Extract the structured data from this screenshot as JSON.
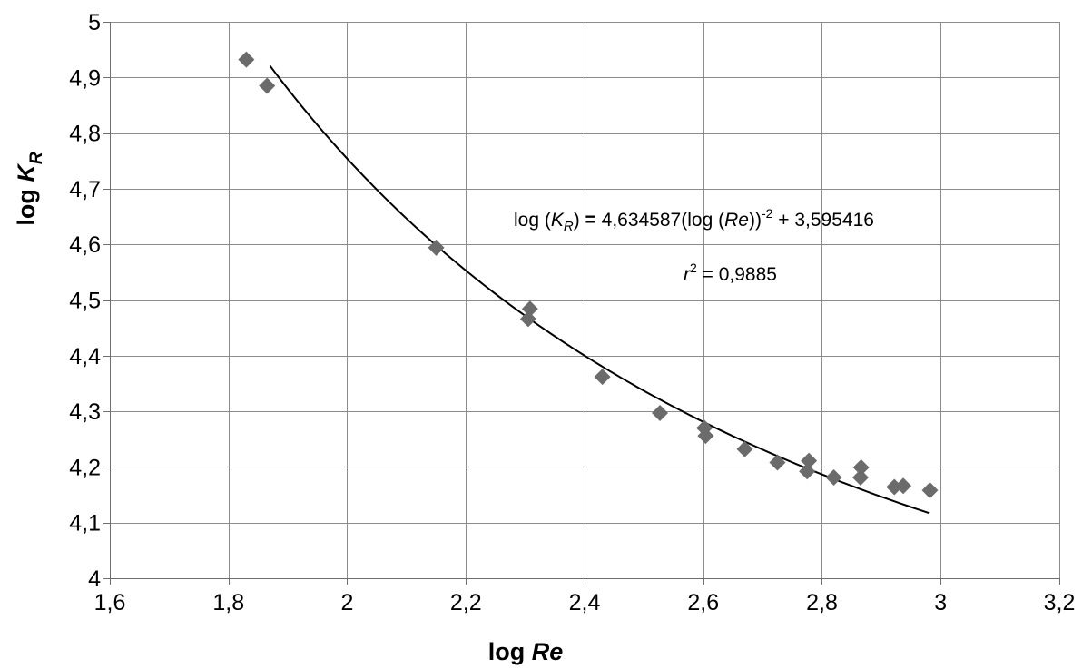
{
  "chart_data": {
    "type": "scatter",
    "xlabel": {
      "prefix": "log ",
      "var": "Re"
    },
    "ylabel": {
      "prefix": "log ",
      "var": "K",
      "sub": "R"
    },
    "xlim": [
      1.6,
      3.2
    ],
    "ylim": [
      4.0,
      5.0
    ],
    "x_ticks": [
      1.6,
      1.8,
      2.0,
      2.2,
      2.4,
      2.6,
      2.8,
      3.0,
      3.2
    ],
    "x_tick_labels": [
      "1,6",
      "1,8",
      "2",
      "2,2",
      "2,4",
      "2,6",
      "2,8",
      "3",
      "3,2"
    ],
    "y_ticks": [
      4.0,
      4.1,
      4.2,
      4.3,
      4.4,
      4.5,
      4.6,
      4.7,
      4.8,
      4.9,
      5.0
    ],
    "y_tick_labels": [
      "4",
      "4,1",
      "4,2",
      "4,3",
      "4,4",
      "4,5",
      "4,6",
      "4,7",
      "4,8",
      "4,9",
      "5"
    ],
    "grid": true,
    "legend": "none",
    "marker_color": "#6b6b6b",
    "line_color": "#000000",
    "points": [
      {
        "x": 1.83,
        "y": 4.932
      },
      {
        "x": 1.865,
        "y": 4.885
      },
      {
        "x": 2.15,
        "y": 4.594
      },
      {
        "x": 2.305,
        "y": 4.466
      },
      {
        "x": 2.308,
        "y": 4.484
      },
      {
        "x": 2.43,
        "y": 4.362
      },
      {
        "x": 2.527,
        "y": 4.297
      },
      {
        "x": 2.602,
        "y": 4.27
      },
      {
        "x": 2.604,
        "y": 4.256
      },
      {
        "x": 2.67,
        "y": 4.232
      },
      {
        "x": 2.725,
        "y": 4.208
      },
      {
        "x": 2.775,
        "y": 4.192
      },
      {
        "x": 2.778,
        "y": 4.211
      },
      {
        "x": 2.82,
        "y": 4.181
      },
      {
        "x": 2.865,
        "y": 4.181
      },
      {
        "x": 2.866,
        "y": 4.199
      },
      {
        "x": 2.922,
        "y": 4.164
      },
      {
        "x": 2.937,
        "y": 4.166
      },
      {
        "x": 2.982,
        "y": 4.158
      }
    ],
    "fit": {
      "type": "trendline",
      "x_start": 1.87,
      "x_end": 2.98,
      "coef_a": 4.634587,
      "exponent": -2,
      "intercept": 3.595416
    },
    "annotations": {
      "equation": {
        "part1": "log (",
        "var": "K",
        "sub": "R",
        "part2": ") ",
        "eq": "=",
        "part3": " 4,634587(log (",
        "re": "Re",
        "part4": "))",
        "exp": "-2",
        "part5": " + 3,595416"
      },
      "r2": {
        "var": "r",
        "sup": "2",
        "rest": " = 0,9885"
      }
    }
  }
}
